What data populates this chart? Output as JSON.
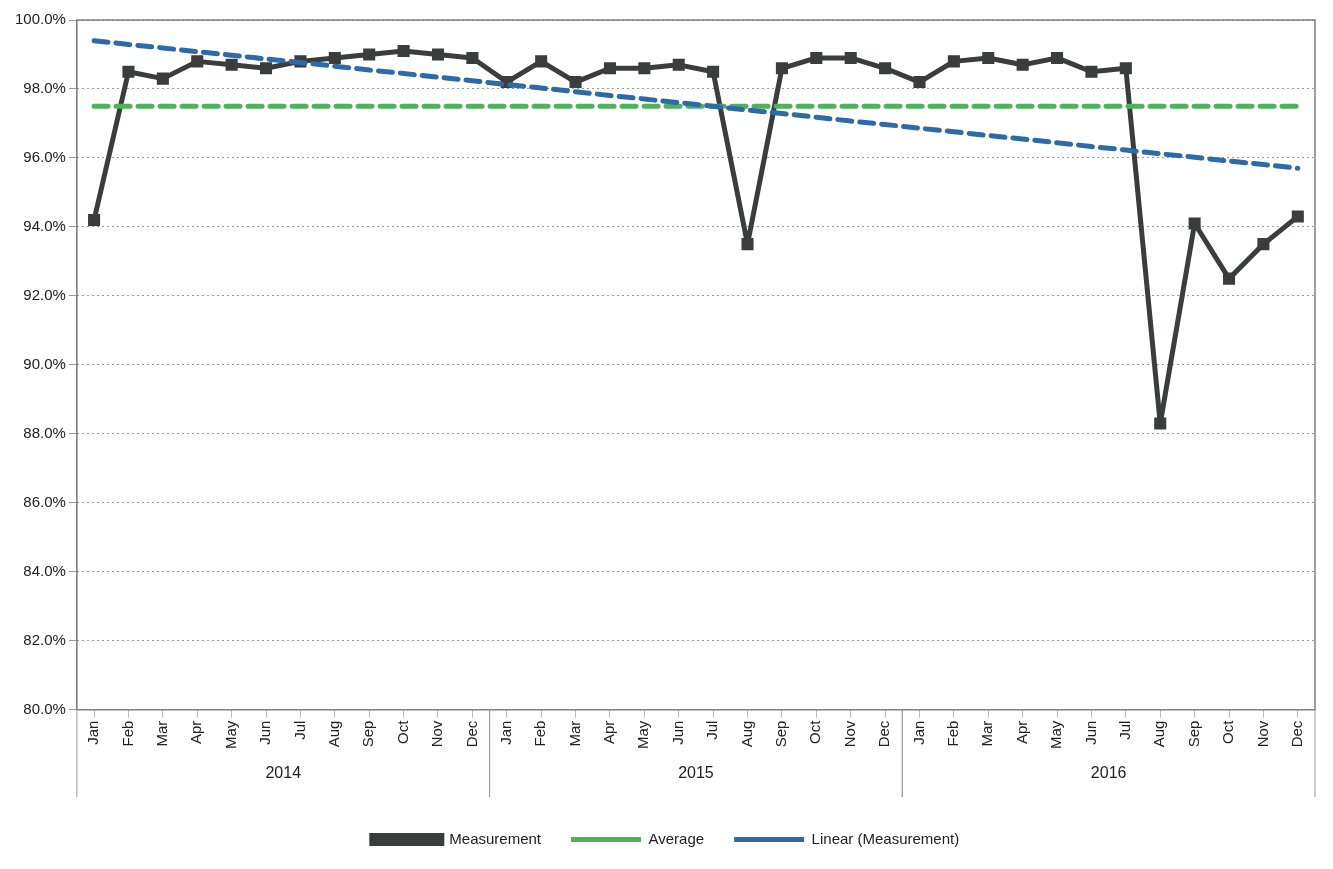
{
  "chart_data": {
    "type": "line",
    "categories": [
      "Jan",
      "Feb",
      "Mar",
      "Apr",
      "May",
      "Jun",
      "Jul",
      "Aug",
      "Sep",
      "Oct",
      "Nov",
      "Dec",
      "Jan",
      "Feb",
      "Mar",
      "Apr",
      "May",
      "Jun",
      "Jul",
      "Aug",
      "Sep",
      "Oct",
      "Nov",
      "Dec",
      "Jan",
      "Feb",
      "Mar",
      "Apr",
      "May",
      "Jun",
      "Jul",
      "Aug",
      "Sep",
      "Oct",
      "Nov",
      "Dec"
    ],
    "series": [
      {
        "name": "Measurement",
        "type": "line",
        "color": "#3a3d3d",
        "marker": "square",
        "line_style": "solid",
        "values": [
          94.2,
          98.5,
          98.3,
          98.8,
          98.7,
          98.6,
          98.8,
          98.9,
          99.0,
          99.1,
          99.0,
          98.9,
          98.2,
          98.8,
          98.2,
          98.6,
          98.6,
          98.7,
          98.5,
          93.5,
          98.6,
          98.9,
          98.9,
          98.6,
          98.2,
          98.8,
          98.9,
          98.7,
          98.9,
          98.5,
          98.6,
          88.3,
          94.1,
          92.5,
          93.5,
          94.3
        ]
      },
      {
        "name": "Average",
        "type": "line",
        "color": "#4db35a",
        "marker": "none",
        "line_style": "dashed",
        "values": [
          97.5,
          97.5,
          97.5,
          97.5,
          97.5,
          97.5,
          97.5,
          97.5,
          97.5,
          97.5,
          97.5,
          97.5,
          97.5,
          97.5,
          97.5,
          97.5,
          97.5,
          97.5,
          97.5,
          97.5,
          97.5,
          97.5,
          97.5,
          97.5,
          97.5,
          97.5,
          97.5,
          97.5,
          97.5,
          97.5,
          97.5,
          97.5,
          97.5,
          97.5,
          97.5,
          97.5
        ]
      },
      {
        "name": "Linear (Measurement)",
        "type": "line",
        "color": "#2e6aa8",
        "marker": "none",
        "line_style": "dashed",
        "values": [
          99.4,
          99.29,
          99.19,
          99.08,
          98.98,
          98.87,
          98.77,
          98.66,
          98.55,
          98.45,
          98.34,
          98.24,
          98.13,
          98.03,
          97.92,
          97.81,
          97.71,
          97.6,
          97.5,
          97.39,
          97.29,
          97.18,
          97.07,
          96.97,
          96.86,
          96.76,
          96.65,
          96.55,
          96.44,
          96.33,
          96.23,
          96.12,
          96.02,
          95.91,
          95.81,
          95.7
        ]
      }
    ],
    "ylim": [
      80,
      100
    ],
    "yticks": [
      {
        "value": 80,
        "label": "80.0%"
      },
      {
        "value": 82,
        "label": "82.0%"
      },
      {
        "value": 84,
        "label": "84.0%"
      },
      {
        "value": 86,
        "label": "86.0%"
      },
      {
        "value": 88,
        "label": "88.0%"
      },
      {
        "value": 90,
        "label": "90.0%"
      },
      {
        "value": 92,
        "label": "92.0%"
      },
      {
        "value": 94,
        "label": "94.0%"
      },
      {
        "value": 96,
        "label": "96.0%"
      },
      {
        "value": 98,
        "label": "98.0%"
      },
      {
        "value": 100,
        "label": "100.0%"
      }
    ],
    "annotations": [
      "2014",
      "2015",
      "2016"
    ],
    "grid": "y",
    "legend": "bottom"
  }
}
